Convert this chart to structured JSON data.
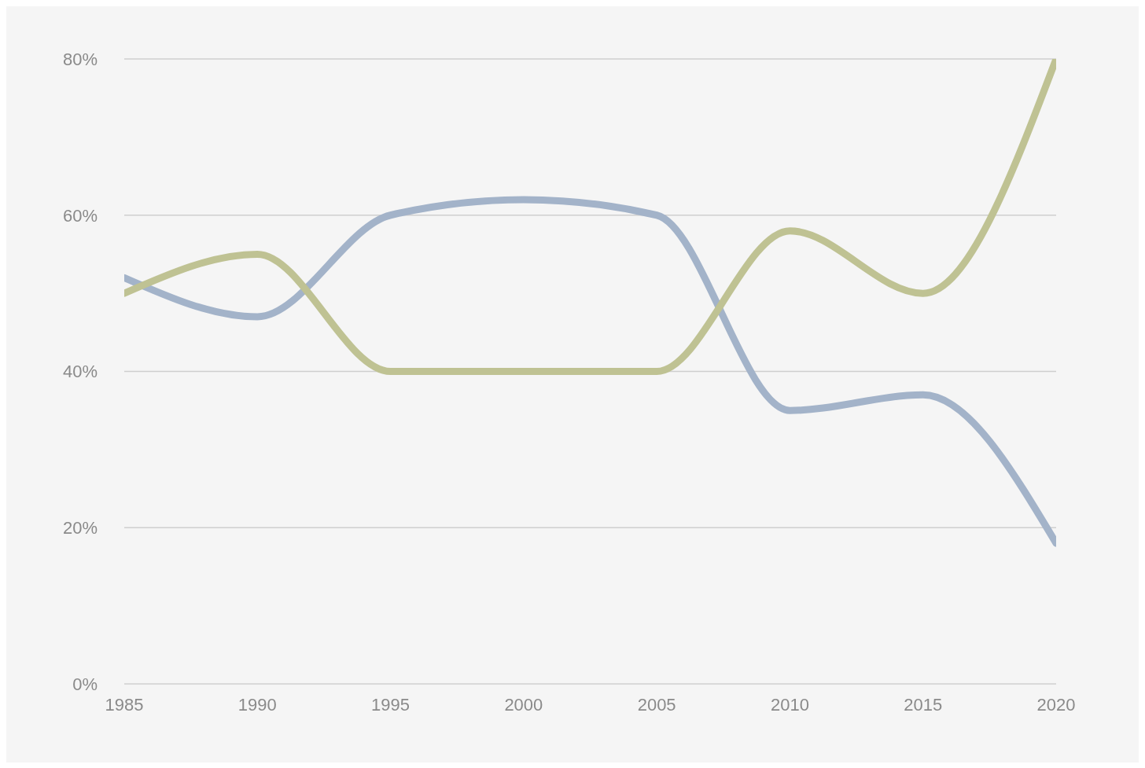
{
  "chart_data": {
    "type": "line",
    "x": [
      1985,
      1990,
      1995,
      2000,
      2005,
      2010,
      2015,
      2020
    ],
    "series": [
      {
        "color": "#a3b3c9",
        "values": [
          52,
          47,
          60,
          62,
          60,
          35,
          37,
          18
        ]
      },
      {
        "color": "#bfc293",
        "values": [
          50,
          55,
          40,
          40,
          40,
          58,
          50,
          80
        ]
      }
    ],
    "xlim": [
      1985,
      2020
    ],
    "xticks": [
      1985,
      1990,
      1995,
      2000,
      2005,
      2010,
      2015,
      2020
    ],
    "ylim": [
      0,
      80
    ],
    "yticks": [
      {
        "value": 0,
        "label": "0%"
      },
      {
        "value": 20,
        "label": "20%"
      },
      {
        "value": 40,
        "label": "40%"
      },
      {
        "value": 60,
        "label": "60%"
      },
      {
        "value": 80,
        "label": "80%"
      }
    ],
    "grid": "y",
    "legend": false,
    "marker": "none",
    "line_style": "solid"
  }
}
